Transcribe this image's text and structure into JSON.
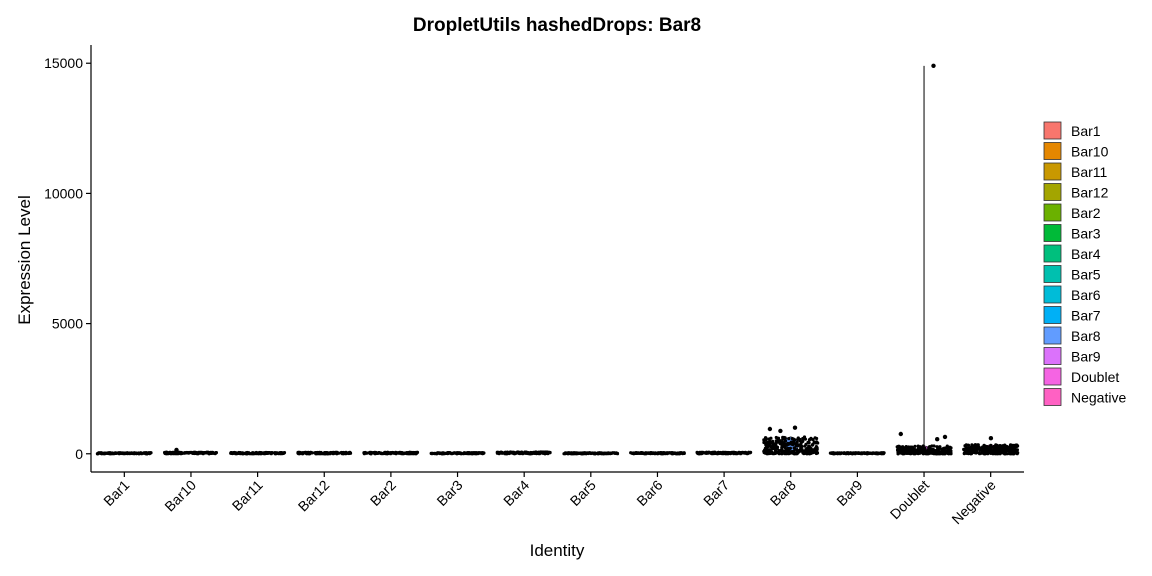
{
  "chart_data": {
    "type": "violin",
    "title": "DropletUtils hashedDrops: Bar8",
    "xlabel": "Identity",
    "ylabel": "Expression Level",
    "ylim": [
      -700,
      15700
    ],
    "yticks": [
      0,
      5000,
      10000,
      15000
    ],
    "categories": [
      "Bar1",
      "Bar10",
      "Bar11",
      "Bar12",
      "Bar2",
      "Bar3",
      "Bar4",
      "Bar5",
      "Bar6",
      "Bar7",
      "Bar8",
      "Bar9",
      "Doublet",
      "Negative"
    ],
    "legend_title": "",
    "legend_position": "right",
    "grid": false,
    "series": [
      {
        "name": "Bar1",
        "color": "#F8766D",
        "median": 10,
        "q_low": 0,
        "q_high": 40,
        "max": 60
      },
      {
        "name": "Bar10",
        "color": "#E58700",
        "median": 15,
        "q_low": 0,
        "q_high": 60,
        "max": 150
      },
      {
        "name": "Bar11",
        "color": "#C99800",
        "median": 10,
        "q_low": 0,
        "q_high": 50,
        "max": 80
      },
      {
        "name": "Bar12",
        "color": "#A3A500",
        "median": 15,
        "q_low": 0,
        "q_high": 55,
        "max": 90
      },
      {
        "name": "Bar2",
        "color": "#6BB100",
        "median": 15,
        "q_low": 0,
        "q_high": 55,
        "max": 100
      },
      {
        "name": "Bar3",
        "color": "#00BA38",
        "median": 10,
        "q_low": 0,
        "q_high": 45,
        "max": 70
      },
      {
        "name": "Bar4",
        "color": "#00BF7D",
        "median": 20,
        "q_low": 0,
        "q_high": 70,
        "max": 140
      },
      {
        "name": "Bar5",
        "color": "#00C0AF",
        "median": 10,
        "q_low": 0,
        "q_high": 40,
        "max": 60
      },
      {
        "name": "Bar6",
        "color": "#00BCD8",
        "median": 10,
        "q_low": 0,
        "q_high": 45,
        "max": 70
      },
      {
        "name": "Bar7",
        "color": "#00B0F6",
        "median": 15,
        "q_low": 0,
        "q_high": 60,
        "max": 110
      },
      {
        "name": "Bar8",
        "color": "#619CFF",
        "median": 300,
        "q_low": 100,
        "q_high": 650,
        "max": 1000
      },
      {
        "name": "Bar9",
        "color": "#B983FF",
        "median": 10,
        "q_low": 0,
        "q_high": 40,
        "max": 60
      },
      {
        "name": "Doublet",
        "color": "#E76BF3",
        "median": 40,
        "q_low": 0,
        "q_high": 300,
        "max": 14900
      },
      {
        "name": "Negative",
        "color": "#FD61D1",
        "median": 60,
        "q_low": 0,
        "q_high": 350,
        "max": 600
      }
    ],
    "legend": [
      {
        "label": "Bar1",
        "color": "#F8766D"
      },
      {
        "label": "Bar10",
        "color": "#E58700"
      },
      {
        "label": "Bar11",
        "color": "#C99800"
      },
      {
        "label": "Bar12",
        "color": "#A3A500"
      },
      {
        "label": "Bar2",
        "color": "#6BB100"
      },
      {
        "label": "Bar3",
        "color": "#00BA38"
      },
      {
        "label": "Bar4",
        "color": "#00BF7D"
      },
      {
        "label": "Bar5",
        "color": "#00C0AF"
      },
      {
        "label": "Bar6",
        "color": "#00BCD8"
      },
      {
        "label": "Bar7",
        "color": "#00B0F6"
      },
      {
        "label": "Bar8",
        "color": "#619CFF"
      },
      {
        "label": "Bar9",
        "color": "#DB72FB"
      },
      {
        "label": "Doublet",
        "color": "#F564E3"
      },
      {
        "label": "Negative",
        "color": "#FF61C3"
      }
    ],
    "outliers": [
      {
        "category": "Doublet",
        "value": 14900
      },
      {
        "category": "Doublet",
        "value": 760
      },
      {
        "category": "Doublet",
        "value": 650
      },
      {
        "category": "Doublet",
        "value": 560
      },
      {
        "category": "Bar8",
        "value": 1000
      },
      {
        "category": "Bar8",
        "value": 950
      },
      {
        "category": "Bar8",
        "value": 880
      },
      {
        "category": "Bar10",
        "value": 150
      },
      {
        "category": "Negative",
        "value": 600
      }
    ]
  }
}
